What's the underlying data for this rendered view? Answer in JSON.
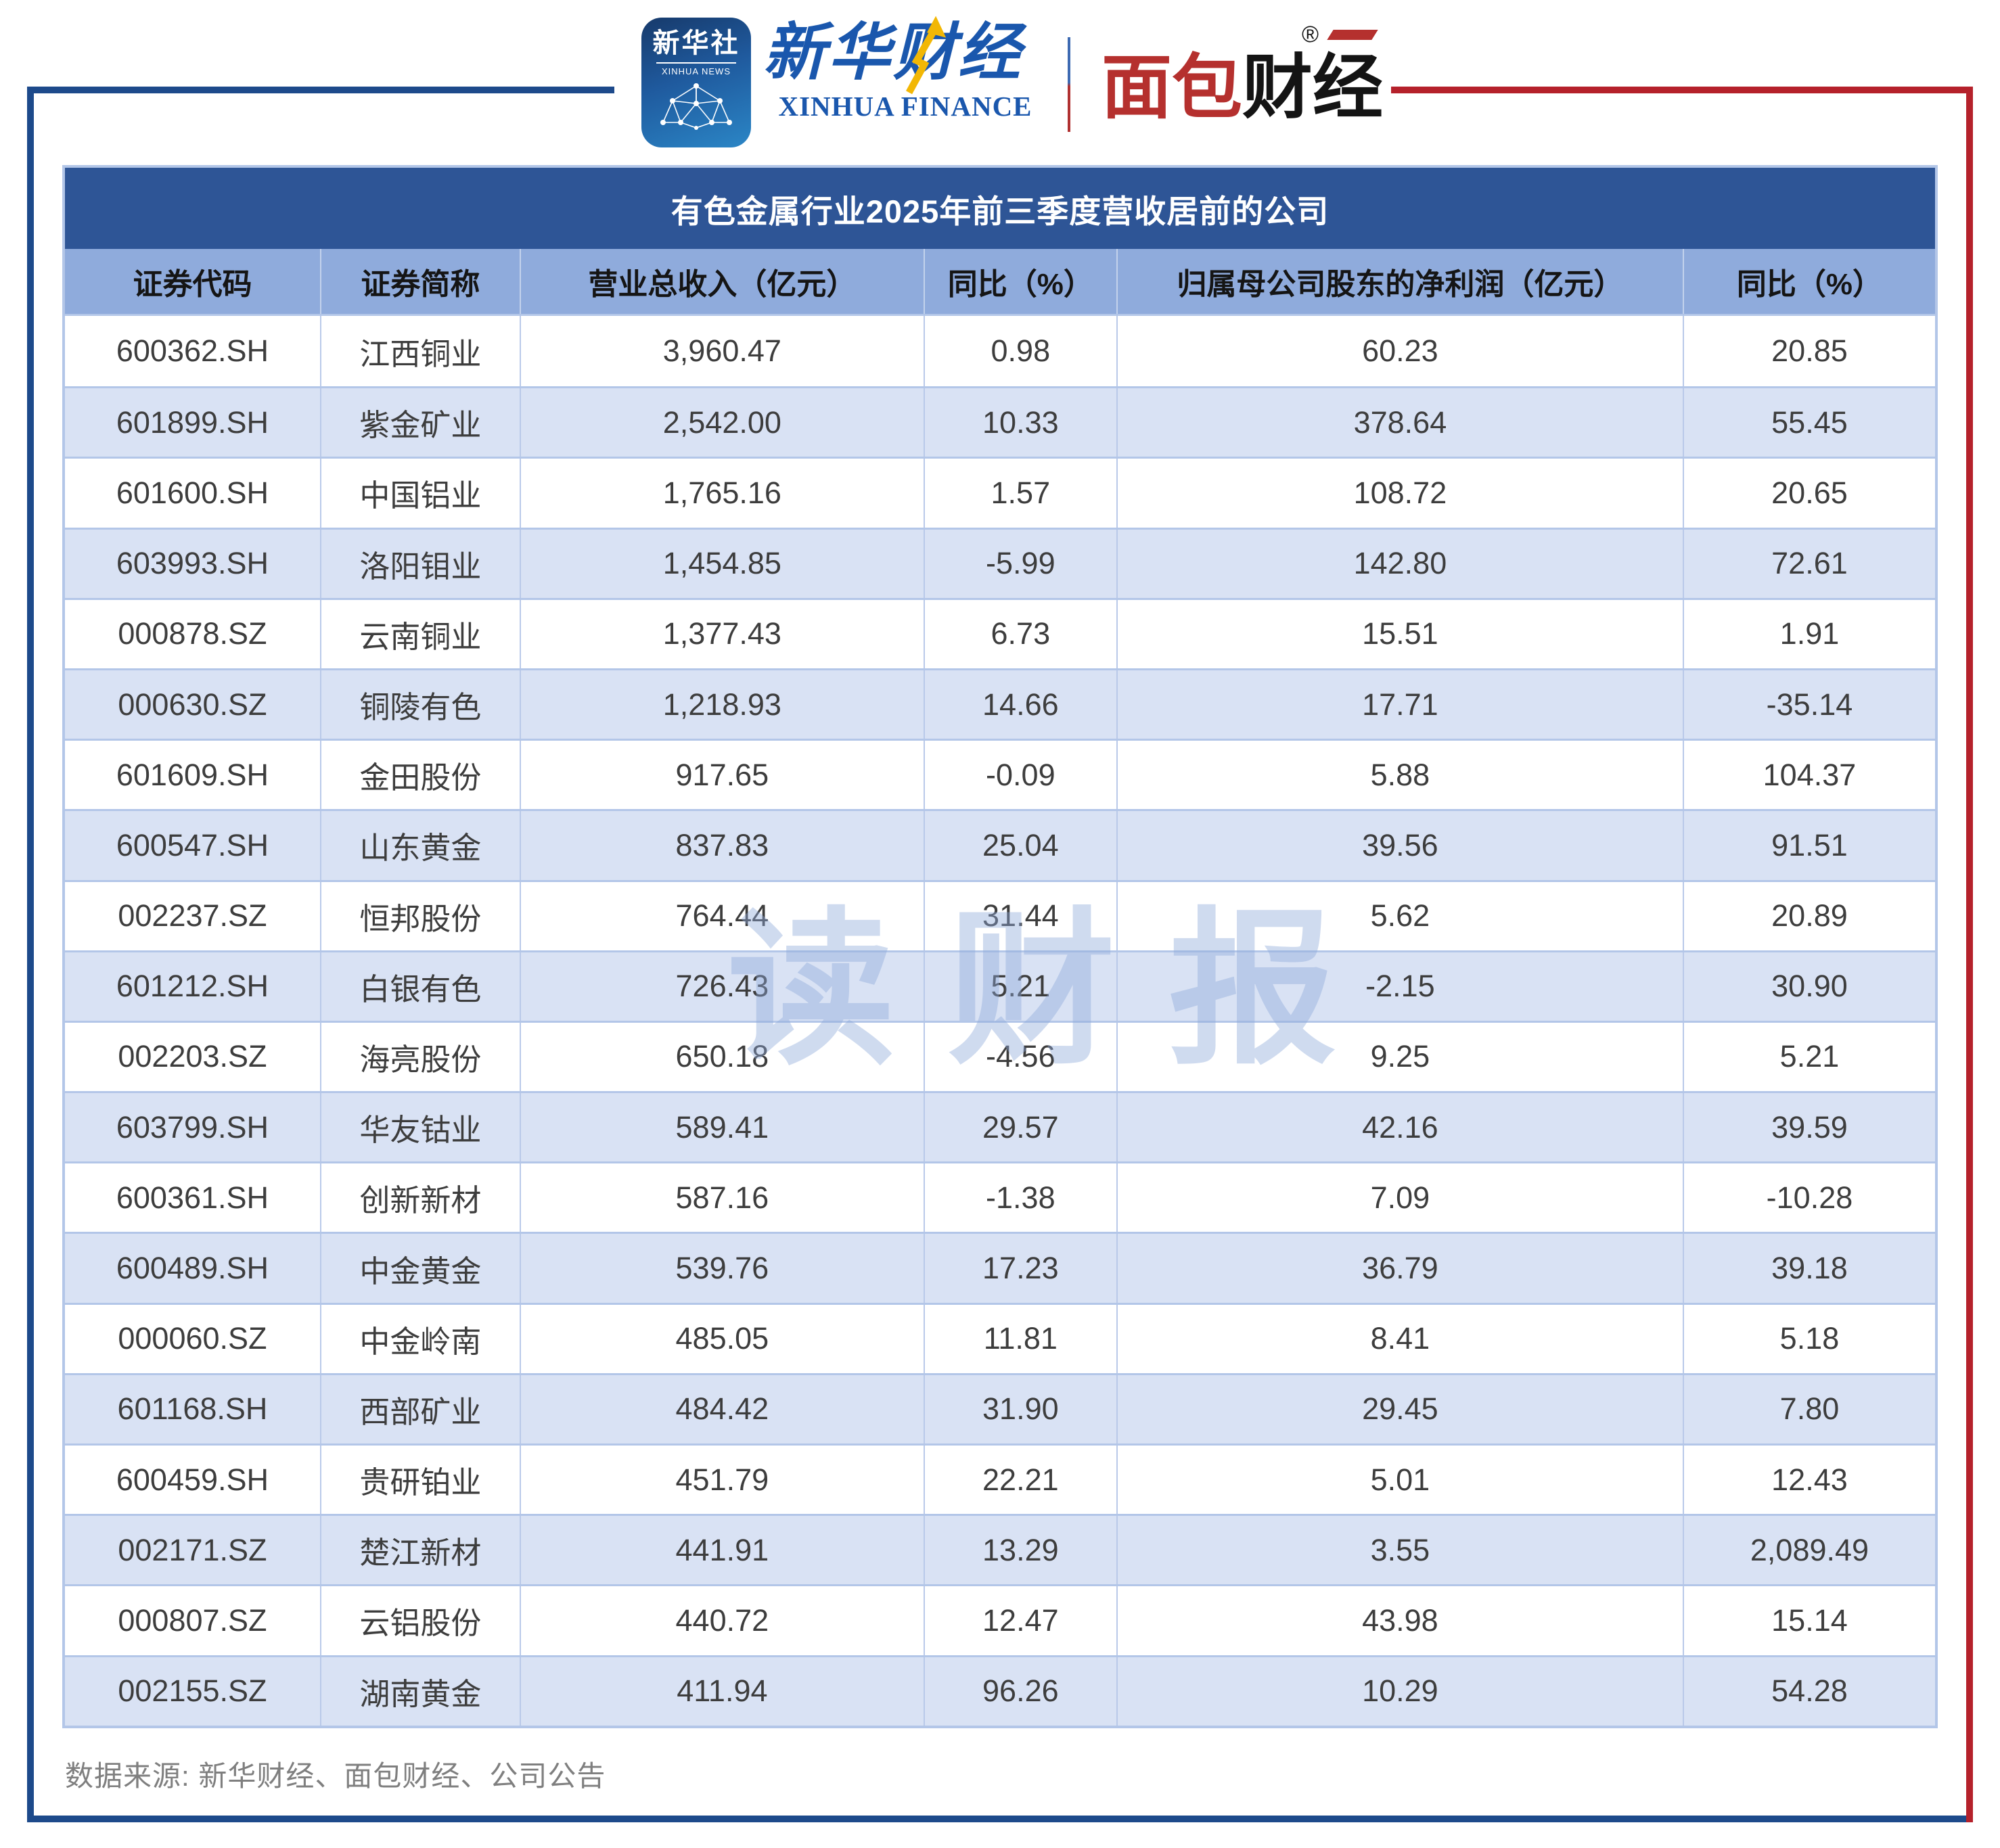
{
  "header": {
    "xinhua_app": {
      "cn": "新华社",
      "en": "XINHUA NEWS"
    },
    "xinhua_finance": {
      "cn": "新华财经",
      "en": "XINHUA FINANCE"
    },
    "mianbao": {
      "cn_red": "面包",
      "cn_black": "财经",
      "reg": "®"
    }
  },
  "chart_data": {
    "type": "table",
    "title": "有色金属行业2025年前三季度营收居前的公司",
    "columns": [
      "证券代码",
      "证券简称",
      "营业总收入（亿元）",
      "同比（%）",
      "归属母公司股东的净利润（亿元）",
      "同比（%）"
    ],
    "rows": [
      [
        "600362.SH",
        "江西铜业",
        "3,960.47",
        "0.98",
        "60.23",
        "20.85"
      ],
      [
        "601899.SH",
        "紫金矿业",
        "2,542.00",
        "10.33",
        "378.64",
        "55.45"
      ],
      [
        "601600.SH",
        "中国铝业",
        "1,765.16",
        "1.57",
        "108.72",
        "20.65"
      ],
      [
        "603993.SH",
        "洛阳钼业",
        "1,454.85",
        "-5.99",
        "142.80",
        "72.61"
      ],
      [
        "000878.SZ",
        "云南铜业",
        "1,377.43",
        "6.73",
        "15.51",
        "1.91"
      ],
      [
        "000630.SZ",
        "铜陵有色",
        "1,218.93",
        "14.66",
        "17.71",
        "-35.14"
      ],
      [
        "601609.SH",
        "金田股份",
        "917.65",
        "-0.09",
        "5.88",
        "104.37"
      ],
      [
        "600547.SH",
        "山东黄金",
        "837.83",
        "25.04",
        "39.56",
        "91.51"
      ],
      [
        "002237.SZ",
        "恒邦股份",
        "764.44",
        "31.44",
        "5.62",
        "20.89"
      ],
      [
        "601212.SH",
        "白银有色",
        "726.43",
        "5.21",
        "-2.15",
        "30.90"
      ],
      [
        "002203.SZ",
        "海亮股份",
        "650.18",
        "-4.56",
        "9.25",
        "5.21"
      ],
      [
        "603799.SH",
        "华友钴业",
        "589.41",
        "29.57",
        "42.16",
        "39.59"
      ],
      [
        "600361.SH",
        "创新新材",
        "587.16",
        "-1.38",
        "7.09",
        "-10.28"
      ],
      [
        "600489.SH",
        "中金黄金",
        "539.76",
        "17.23",
        "36.79",
        "39.18"
      ],
      [
        "000060.SZ",
        "中金岭南",
        "485.05",
        "11.81",
        "8.41",
        "5.18"
      ],
      [
        "601168.SH",
        "西部矿业",
        "484.42",
        "31.90",
        "29.45",
        "7.80"
      ],
      [
        "600459.SH",
        "贵研铂业",
        "451.79",
        "22.21",
        "5.01",
        "12.43"
      ],
      [
        "002171.SZ",
        "楚江新材",
        "441.91",
        "13.29",
        "3.55",
        "2,089.49"
      ],
      [
        "000807.SZ",
        "云铝股份",
        "440.72",
        "12.47",
        "43.98",
        "15.14"
      ],
      [
        "002155.SZ",
        "湖南黄金",
        "411.94",
        "96.26",
        "10.29",
        "54.28"
      ]
    ]
  },
  "watermark": "读财报",
  "footer": "数据来源: 新华财经、面包财经、公司公告",
  "colors": {
    "title_bar": "#2e5596",
    "header_row": "#8fabdc",
    "row_alt": "#d9e2f4",
    "table_border": "#b3c6e8",
    "frame_blue": "#1d4a8b",
    "frame_red": "#b5212b",
    "brand_blue": "#1a57ad",
    "brand_red": "#b5302e",
    "accent_yellow": "#f2b705",
    "footer_text": "#7f7f7f"
  }
}
